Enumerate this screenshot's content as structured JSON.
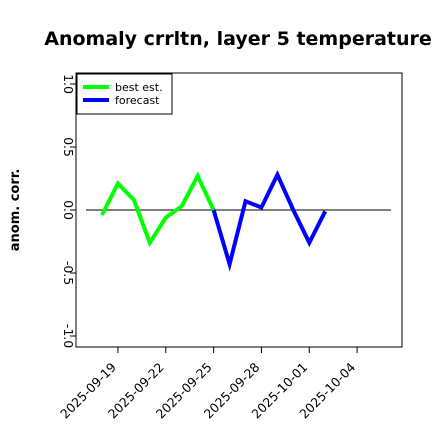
{
  "chart_data": {
    "type": "line",
    "title": "Anomaly crrltn, layer 5 temperature",
    "xlabel": "",
    "ylabel": "anom. corr.",
    "ylim": [
      -1.0,
      1.0
    ],
    "y_ticks": [
      -1.0,
      -0.5,
      0.0,
      0.5,
      1.0
    ],
    "y_tick_labels": [
      "-1.0",
      "-0.5",
      "0.0",
      "0.5",
      "1.0"
    ],
    "x_ticks": [
      "2025-09-19",
      "2025-09-22",
      "2025-09-25",
      "2025-09-28",
      "2025-10-01",
      "2025-10-04"
    ],
    "highlight_tick": "2025-09-25",
    "highlight_color": "#228B22",
    "xlim": [
      "2025-09-18",
      "2025-10-06"
    ],
    "reference_line": 0.0,
    "grid": false,
    "legend_position": "top-left",
    "series": [
      {
        "name": "best est.",
        "color": "#00ff00",
        "points": [
          [
            "2025-09-18",
            -0.04
          ],
          [
            "2025-09-19",
            0.21
          ],
          [
            "2025-09-20",
            0.08
          ],
          [
            "2025-09-21",
            -0.26
          ],
          [
            "2025-09-22",
            -0.06
          ],
          [
            "2025-09-23",
            0.03
          ],
          [
            "2025-09-24",
            0.27
          ],
          [
            "2025-09-25",
            0.0
          ]
        ]
      },
      {
        "name": "forecast",
        "color": "#0000ff",
        "points": [
          [
            "2025-09-25",
            0.0
          ],
          [
            "2025-09-26",
            -0.43
          ],
          [
            "2025-09-27",
            0.07
          ],
          [
            "2025-09-28",
            0.02
          ],
          [
            "2025-09-29",
            0.28
          ],
          [
            "2025-09-30",
            0.0
          ],
          [
            "2025-10-01",
            -0.26
          ],
          [
            "2025-10-02",
            -0.01
          ]
        ]
      }
    ]
  }
}
